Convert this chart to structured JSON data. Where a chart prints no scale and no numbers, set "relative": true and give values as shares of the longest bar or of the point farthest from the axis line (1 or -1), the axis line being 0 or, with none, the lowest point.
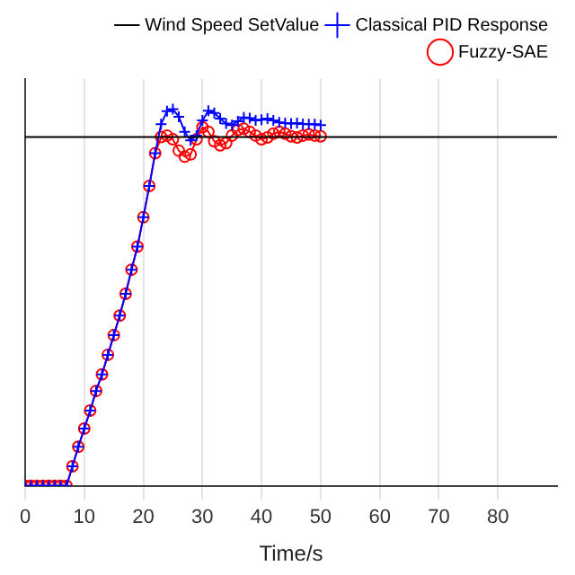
{
  "chart_data": {
    "type": "line",
    "xlabel": "Time/s",
    "relative": true,
    "xlim": [
      0,
      90
    ],
    "xticks": [
      0,
      10,
      20,
      30,
      40,
      50,
      60,
      70,
      80
    ],
    "grid": "x",
    "legend": "top right",
    "series": [
      {
        "name": "Wind Speed SetValue",
        "color": "#000000",
        "marker": "none",
        "x": [
          0,
          90
        ],
        "values": [
          0.926,
          0.926
        ]
      },
      {
        "name": "Classical PID Response",
        "color": "#0000ff",
        "marker": "cross",
        "x": [
          0,
          1,
          2,
          3,
          4,
          5,
          6,
          7,
          8,
          9,
          10,
          11,
          12,
          13,
          14,
          15,
          16,
          17,
          18,
          19,
          20,
          21,
          22,
          23,
          24,
          25,
          26,
          27,
          28,
          29,
          30,
          31,
          32,
          33,
          34,
          35,
          36,
          37,
          38,
          39,
          40,
          41,
          42,
          43,
          44,
          45,
          46,
          47,
          48,
          49,
          50
        ],
        "values": [
          0,
          0,
          0,
          0,
          0,
          0,
          0,
          0,
          0.052,
          0.104,
          0.152,
          0.2,
          0.252,
          0.296,
          0.348,
          0.4,
          0.452,
          0.51,
          0.574,
          0.635,
          0.713,
          0.796,
          0.883,
          0.96,
          0.995,
          1,
          0.98,
          0.94,
          0.917,
          0.93,
          0.97,
          0.996,
          0.99,
          0.975,
          0.962,
          0.958,
          0.968,
          0.978,
          0.976,
          0.97,
          0.972,
          0.975,
          0.97,
          0.965,
          0.963,
          0.962,
          0.963,
          0.961,
          0.96,
          0.96,
          0.958
        ]
      },
      {
        "name": "Fuzzy-SAE",
        "color": "#ff0000",
        "marker": "circle",
        "x": [
          0,
          1,
          2,
          3,
          4,
          5,
          6,
          7,
          8,
          9,
          10,
          11,
          12,
          13,
          14,
          15,
          16,
          17,
          18,
          19,
          20,
          21,
          22,
          23,
          24,
          25,
          26,
          27,
          28,
          29,
          30,
          31,
          32,
          33,
          34,
          35,
          36,
          37,
          38,
          39,
          40,
          41,
          42,
          43,
          44,
          45,
          46,
          47,
          48,
          49,
          50
        ],
        "values": [
          0,
          0,
          0,
          0,
          0,
          0,
          0,
          0,
          0.052,
          0.104,
          0.152,
          0.2,
          0.252,
          0.296,
          0.348,
          0.4,
          0.452,
          0.51,
          0.574,
          0.635,
          0.713,
          0.796,
          0.883,
          0.926,
          0.93,
          0.92,
          0.89,
          0.874,
          0.88,
          0.92,
          0.952,
          0.94,
          0.915,
          0.904,
          0.91,
          0.93,
          0.945,
          0.948,
          0.94,
          0.93,
          0.92,
          0.925,
          0.935,
          0.94,
          0.935,
          0.928,
          0.925,
          0.93,
          0.933,
          0.93,
          0.928
        ]
      }
    ]
  }
}
